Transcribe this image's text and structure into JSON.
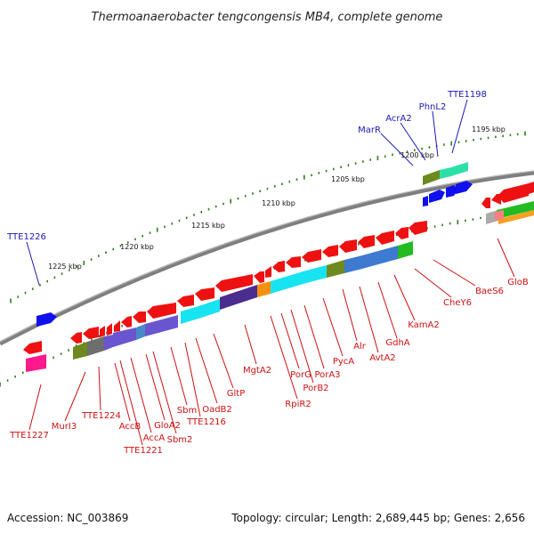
{
  "title": "Thermoanaerobacter tengcongensis MB4, complete genome",
  "footer": {
    "accession": "Accession: NC_003869",
    "summary": "Topology: circular; Length: 2,689,445 bp; Genes: 2,656"
  },
  "colors": {
    "backbone": "#7f7f7f",
    "tick": "#2e7d1e",
    "label_forward": "#1a1ab5",
    "label_reverse": "#cc1111"
  },
  "scale_labels": [
    "1195 kbp",
    "1200 kbp",
    "1205 kbp",
    "1210 kbp",
    "1215 kbp",
    "1220 kbp",
    "1225 kbp"
  ],
  "gene_labels_top": [
    "TTE1198",
    "PhnL2",
    "AcrA2",
    "MarR",
    "TTE1226"
  ],
  "gene_labels_bottom": [
    "GloB",
    "BaeS6",
    "CheY6",
    "KamA2",
    "GdhA",
    "AvtA2",
    "Alr",
    "PycA",
    "PorA3",
    "PorB2",
    "PorG",
    "RpiR2",
    "MgtA2",
    "GltP",
    "OadB2",
    "TTE1216",
    "Sbm",
    "Sbm2",
    "GloA2",
    "AccA",
    "TTE1221",
    "AccB",
    "TTE1224",
    "MurI3",
    "TTE1227"
  ]
}
